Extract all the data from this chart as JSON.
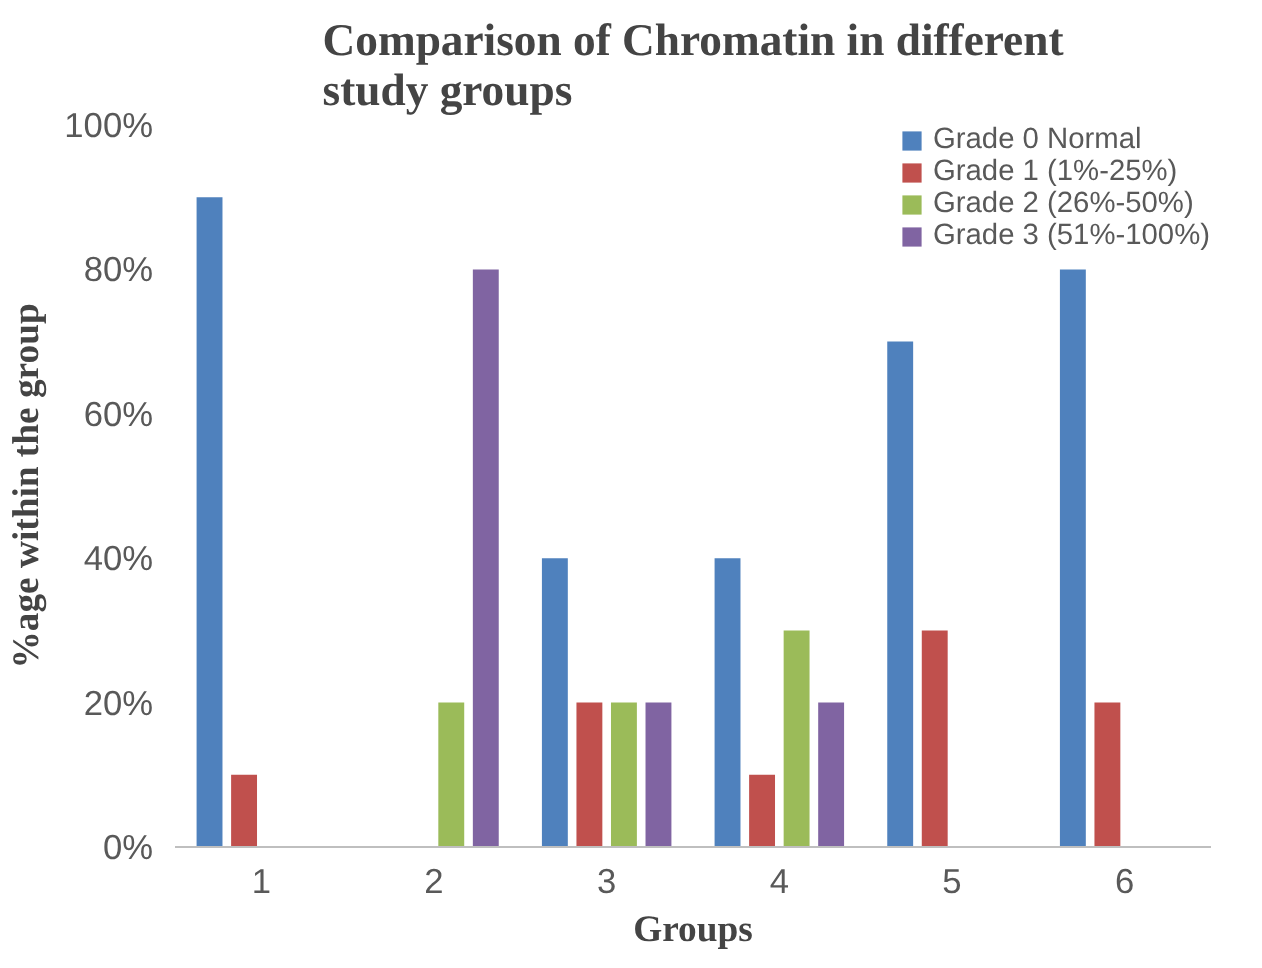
{
  "chart_data": {
    "type": "bar",
    "title": "Comparison of Chromatin in different study groups",
    "xlabel": "Groups",
    "ylabel": "%age within the group",
    "categories": [
      "1",
      "2",
      "3",
      "4",
      "5",
      "6"
    ],
    "series": [
      {
        "name": "Grade 0 Normal",
        "color": "#4f81bd",
        "values": [
          90,
          0,
          40,
          40,
          70,
          80
        ]
      },
      {
        "name": "Grade 1 (1%-25%)",
        "color": "#c0504d",
        "values": [
          10,
          0,
          20,
          10,
          30,
          20
        ]
      },
      {
        "name": "Grade 2 (26%-50%)",
        "color": "#9bbb59",
        "values": [
          0,
          20,
          20,
          30,
          0,
          0
        ]
      },
      {
        "name": "Grade 3 (51%-100%)",
        "color": "#8064a2",
        "values": [
          0,
          80,
          20,
          20,
          0,
          0
        ]
      }
    ],
    "ylim": [
      0,
      100
    ],
    "yticks": [
      {
        "value": 0,
        "label": "0%"
      },
      {
        "value": 20,
        "label": "20%"
      },
      {
        "value": 40,
        "label": "40%"
      },
      {
        "value": 60,
        "label": "60%"
      },
      {
        "value": 80,
        "label": "80%"
      },
      {
        "value": 100,
        "label": "100%"
      }
    ],
    "grid": false,
    "legend": "top right"
  }
}
